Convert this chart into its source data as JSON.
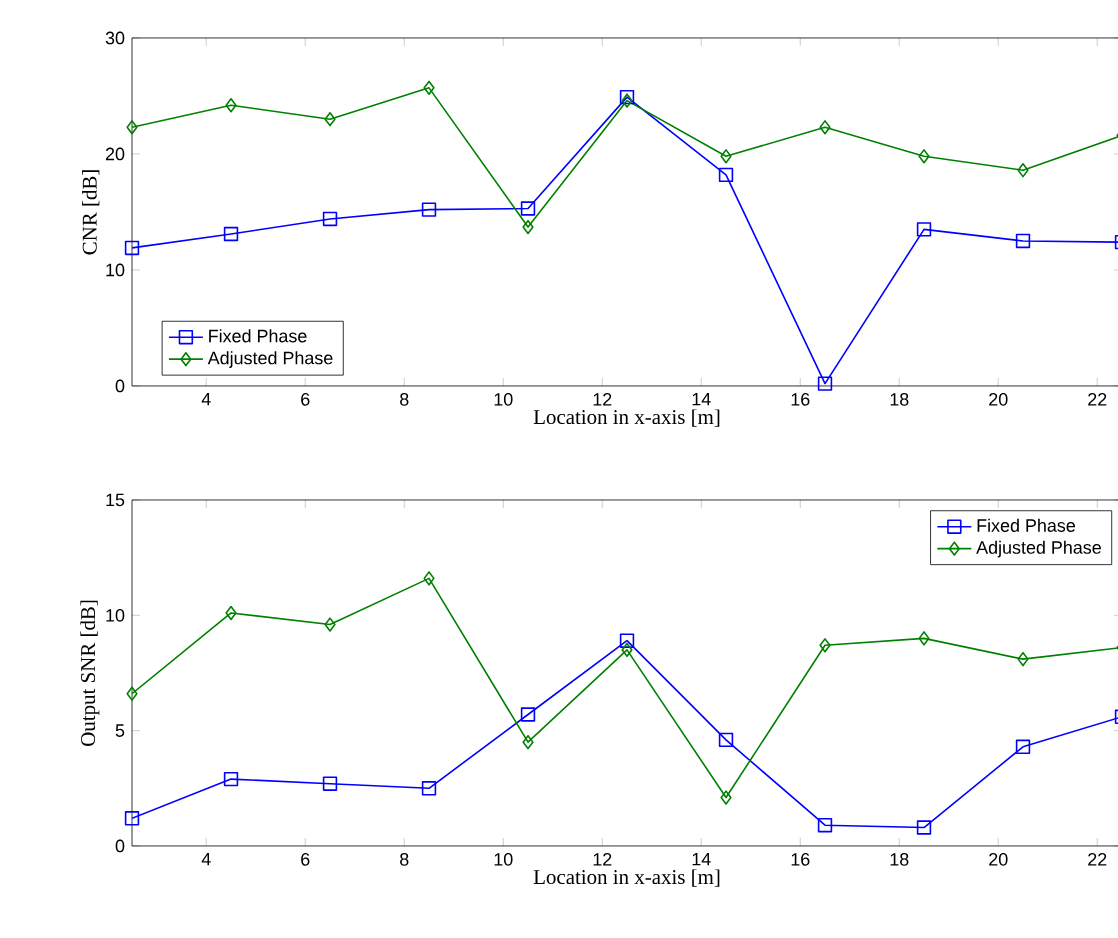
{
  "chart_data": [
    {
      "type": "line",
      "xlabel": "Location in x-axis [m]",
      "ylabel": "CNR [dB]",
      "x": [
        2.5,
        4.5,
        6.5,
        8.5,
        10.5,
        12.5,
        14.5,
        16.5,
        18.5,
        20.5,
        22.5
      ],
      "xlim": [
        2.5,
        22.5
      ],
      "xticks": [
        4,
        6,
        8,
        10,
        12,
        14,
        16,
        18,
        20,
        22
      ],
      "ylim": [
        0,
        30
      ],
      "yticks": [
        0,
        10,
        20,
        30
      ],
      "grid": false,
      "legend": "bottom left",
      "series": [
        {
          "name": "Fixed Phase",
          "color": "#0000ff",
          "marker": "square",
          "values": [
            11.9,
            13.1,
            14.4,
            15.2,
            15.3,
            24.9,
            18.2,
            0.2,
            13.5,
            12.5,
            12.4
          ]
        },
        {
          "name": "Adjusted Phase",
          "color": "#008000",
          "marker": "diamond",
          "values": [
            22.3,
            24.2,
            23.0,
            25.7,
            13.7,
            24.6,
            19.8,
            22.3,
            19.8,
            18.6,
            21.6
          ]
        }
      ]
    },
    {
      "type": "line",
      "xlabel": "Location in x-axis [m]",
      "ylabel": "Output SNR [dB]",
      "x": [
        2.5,
        4.5,
        6.5,
        8.5,
        10.5,
        12.5,
        14.5,
        16.5,
        18.5,
        20.5,
        22.5
      ],
      "xlim": [
        2.5,
        22.5
      ],
      "xticks": [
        4,
        6,
        8,
        10,
        12,
        14,
        16,
        18,
        20,
        22
      ],
      "ylim": [
        0,
        15
      ],
      "yticks": [
        0,
        5,
        10,
        15
      ],
      "grid": false,
      "legend": "top right",
      "series": [
        {
          "name": "Fixed Phase",
          "color": "#0000ff",
          "marker": "square",
          "values": [
            1.2,
            2.9,
            2.7,
            2.5,
            5.7,
            8.9,
            4.6,
            0.9,
            0.8,
            4.3,
            5.6
          ]
        },
        {
          "name": "Adjusted Phase",
          "color": "#008000",
          "marker": "diamond",
          "values": [
            6.6,
            10.1,
            9.6,
            11.6,
            4.5,
            8.5,
            2.1,
            8.7,
            9.0,
            8.1,
            8.6
          ]
        }
      ]
    }
  ]
}
